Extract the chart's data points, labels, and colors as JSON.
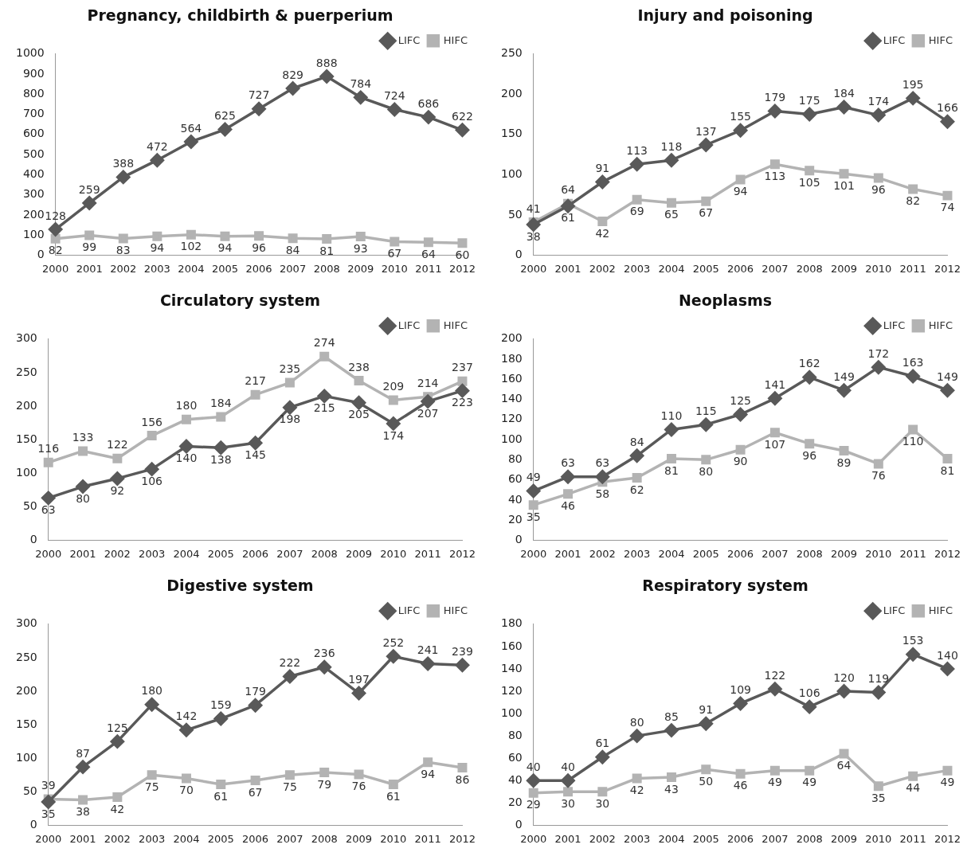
{
  "chart_data": [
    {
      "type": "line",
      "title": "Pregnancy, childbirth & puerperium",
      "categories": [
        "2000",
        "2001",
        "2002",
        "2003",
        "2004",
        "2005",
        "2006",
        "2007",
        "2008",
        "2009",
        "2010",
        "2011",
        "2012"
      ],
      "ylim": [
        0,
        1000
      ],
      "yticks": [
        0,
        100,
        200,
        300,
        400,
        500,
        600,
        700,
        800,
        900,
        1000
      ],
      "grid": false,
      "legend": "top right",
      "data_labels": true,
      "series": [
        {
          "name": "LIFC",
          "color": "#595959",
          "marker": "diamond",
          "values": [
            128,
            259,
            388,
            472,
            564,
            625,
            727,
            829,
            888,
            784,
            724,
            686,
            622
          ]
        },
        {
          "name": "HIFC",
          "color": "#b3b3b3",
          "marker": "square",
          "values": [
            82,
            99,
            83,
            94,
            102,
            94,
            96,
            84,
            81,
            93,
            67,
            64,
            60
          ]
        }
      ]
    },
    {
      "type": "line",
      "title": "Injury and poisoning",
      "categories": [
        "2000",
        "2001",
        "2002",
        "2003",
        "2004",
        "2005",
        "2006",
        "2007",
        "2008",
        "2009",
        "2010",
        "2011",
        "2012"
      ],
      "ylim": [
        0,
        250
      ],
      "yticks": [
        0,
        50,
        100,
        150,
        200,
        250
      ],
      "grid": false,
      "legend": "top right",
      "data_labels": true,
      "series": [
        {
          "name": "LIFC",
          "color": "#595959",
          "marker": "diamond",
          "values": [
            38,
            61,
            91,
            113,
            118,
            137,
            155,
            179,
            175,
            184,
            174,
            195,
            166
          ]
        },
        {
          "name": "HIFC",
          "color": "#b3b3b3",
          "marker": "square",
          "values": [
            41,
            64,
            42,
            69,
            65,
            67,
            94,
            113,
            105,
            101,
            96,
            82,
            74
          ]
        }
      ]
    },
    {
      "type": "line",
      "title": "Circulatory system",
      "categories": [
        "2000",
        "2001",
        "2002",
        "2003",
        "2004",
        "2005",
        "2006",
        "2007",
        "2008",
        "2009",
        "2010",
        "2011",
        "2012"
      ],
      "ylim": [
        0,
        300
      ],
      "yticks": [
        0,
        50,
        100,
        150,
        200,
        250,
        300
      ],
      "grid": false,
      "legend": "top right",
      "data_labels": true,
      "series": [
        {
          "name": "LIFC",
          "color": "#595959",
          "marker": "diamond",
          "values": [
            63,
            80,
            92,
            106,
            140,
            138,
            145,
            198,
            215,
            205,
            174,
            207,
            223
          ]
        },
        {
          "name": "HIFC",
          "color": "#b3b3b3",
          "marker": "square",
          "values": [
            116,
            133,
            122,
            156,
            180,
            184,
            217,
            235,
            274,
            238,
            209,
            214,
            237
          ]
        }
      ]
    },
    {
      "type": "line",
      "title": "Neoplasms",
      "categories": [
        "2000",
        "2001",
        "2002",
        "2003",
        "2004",
        "2005",
        "2006",
        "2007",
        "2008",
        "2009",
        "2010",
        "2011",
        "2012"
      ],
      "ylim": [
        0,
        200
      ],
      "yticks": [
        0,
        20,
        40,
        60,
        80,
        100,
        120,
        140,
        160,
        180,
        200
      ],
      "grid": false,
      "legend": "top right",
      "data_labels": true,
      "series": [
        {
          "name": "LIFC",
          "color": "#595959",
          "marker": "diamond",
          "values": [
            49,
            63,
            63,
            84,
            110,
            115,
            125,
            141,
            162,
            149,
            172,
            163,
            149
          ]
        },
        {
          "name": "HIFC",
          "color": "#b3b3b3",
          "marker": "square",
          "values": [
            35,
            46,
            58,
            62,
            81,
            80,
            90,
            107,
            96,
            89,
            76,
            110,
            81
          ]
        }
      ]
    },
    {
      "type": "line",
      "title": "Digestive system",
      "categories": [
        "2000",
        "2001",
        "2002",
        "2003",
        "2004",
        "2005",
        "2006",
        "2007",
        "2008",
        "2009",
        "2010",
        "2011",
        "2012"
      ],
      "ylim": [
        0,
        300
      ],
      "yticks": [
        0,
        50,
        100,
        150,
        200,
        250,
        300
      ],
      "grid": false,
      "legend": "top right",
      "data_labels": true,
      "series": [
        {
          "name": "LIFC",
          "color": "#595959",
          "marker": "diamond",
          "values": [
            35,
            87,
            125,
            180,
            142,
            159,
            179,
            222,
            236,
            197,
            252,
            241,
            239
          ]
        },
        {
          "name": "HIFC",
          "color": "#b3b3b3",
          "marker": "square",
          "values": [
            39,
            38,
            42,
            75,
            70,
            61,
            67,
            75,
            79,
            76,
            61,
            94,
            86
          ]
        }
      ]
    },
    {
      "type": "line",
      "title": "Respiratory system",
      "categories": [
        "2000",
        "2001",
        "2002",
        "2003",
        "2004",
        "2005",
        "2006",
        "2007",
        "2008",
        "2009",
        "2010",
        "2011",
        "2012"
      ],
      "ylim": [
        0,
        180
      ],
      "yticks": [
        0,
        20,
        40,
        60,
        80,
        100,
        120,
        140,
        160,
        180
      ],
      "grid": false,
      "legend": "top right",
      "data_labels": true,
      "series": [
        {
          "name": "LIFC",
          "color": "#595959",
          "marker": "diamond",
          "values": [
            40,
            40,
            61,
            80,
            85,
            91,
            109,
            122,
            106,
            120,
            119,
            153,
            140
          ]
        },
        {
          "name": "HIFC",
          "color": "#b3b3b3",
          "marker": "square",
          "values": [
            29,
            30,
            30,
            42,
            43,
            50,
            46,
            49,
            49,
            64,
            35,
            44,
            49
          ]
        }
      ]
    }
  ]
}
